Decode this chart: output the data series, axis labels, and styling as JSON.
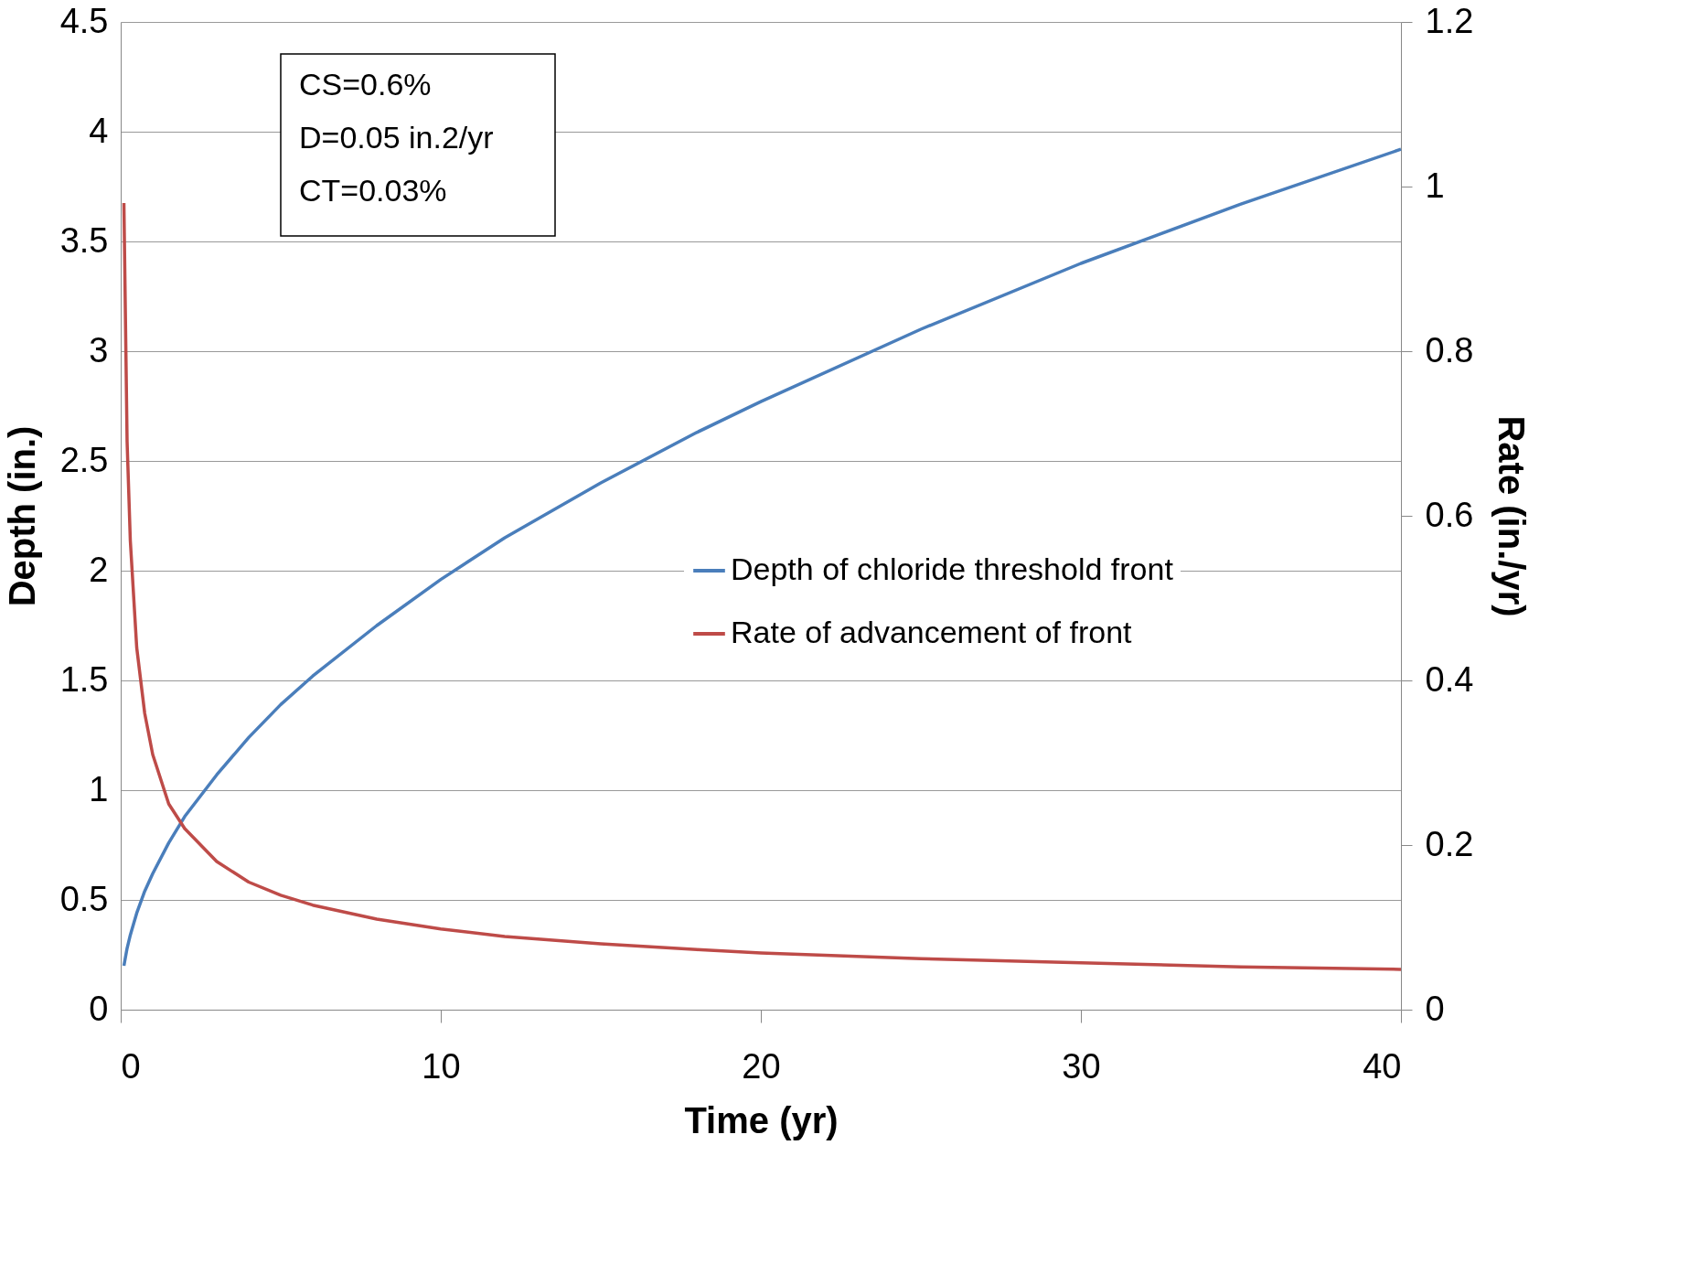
{
  "chart_data": {
    "type": "line",
    "xlabel": "Time (yr)",
    "ylabel": "Depth (in.)",
    "y2label": "Rate (in./yr)",
    "xlim": [
      0,
      40
    ],
    "xticks": [
      0,
      10,
      20,
      30,
      40
    ],
    "ylim": [
      0,
      4.5
    ],
    "yticks": [
      0,
      0.5,
      1,
      1.5,
      2,
      2.5,
      3,
      3.5,
      4,
      4.5
    ],
    "y2lim": [
      0,
      1.2
    ],
    "y2ticks": [
      0,
      0.2,
      0.4,
      0.6,
      0.8,
      1,
      1.2
    ],
    "grid": "y",
    "legend": "right",
    "line_style": "solid",
    "marker": "none",
    "annotations": [
      "CS=0.6%",
      "D=0.05 in.2/yr",
      "CT=0.03%"
    ],
    "series": [
      {
        "name": "Depth of chloride threshold front",
        "color": "#4a7ebb",
        "axis": "y",
        "x": [
          0.1,
          0.2,
          0.3,
          0.5,
          0.75,
          1,
          1.5,
          2,
          3,
          4,
          5,
          6,
          8,
          10,
          12,
          15,
          18,
          20,
          25,
          30,
          35,
          40
        ],
        "values": [
          0.2,
          0.28,
          0.34,
          0.44,
          0.54,
          0.62,
          0.76,
          0.88,
          1.07,
          1.24,
          1.39,
          1.52,
          1.75,
          1.96,
          2.15,
          2.4,
          2.63,
          2.77,
          3.1,
          3.4,
          3.67,
          3.92
        ]
      },
      {
        "name": "Rate of advancement of front",
        "color": "#be4b48",
        "axis": "y2",
        "x": [
          0.1,
          0.2,
          0.3,
          0.5,
          0.75,
          1,
          1.5,
          2,
          3,
          4,
          5,
          6,
          8,
          10,
          12,
          15,
          18,
          20,
          25,
          30,
          35,
          40
        ],
        "values": [
          0.98,
          0.69,
          0.57,
          0.44,
          0.36,
          0.31,
          0.25,
          0.22,
          0.18,
          0.155,
          0.139,
          0.127,
          0.11,
          0.098,
          0.089,
          0.08,
          0.073,
          0.069,
          0.062,
          0.057,
          0.052,
          0.049
        ]
      }
    ]
  }
}
